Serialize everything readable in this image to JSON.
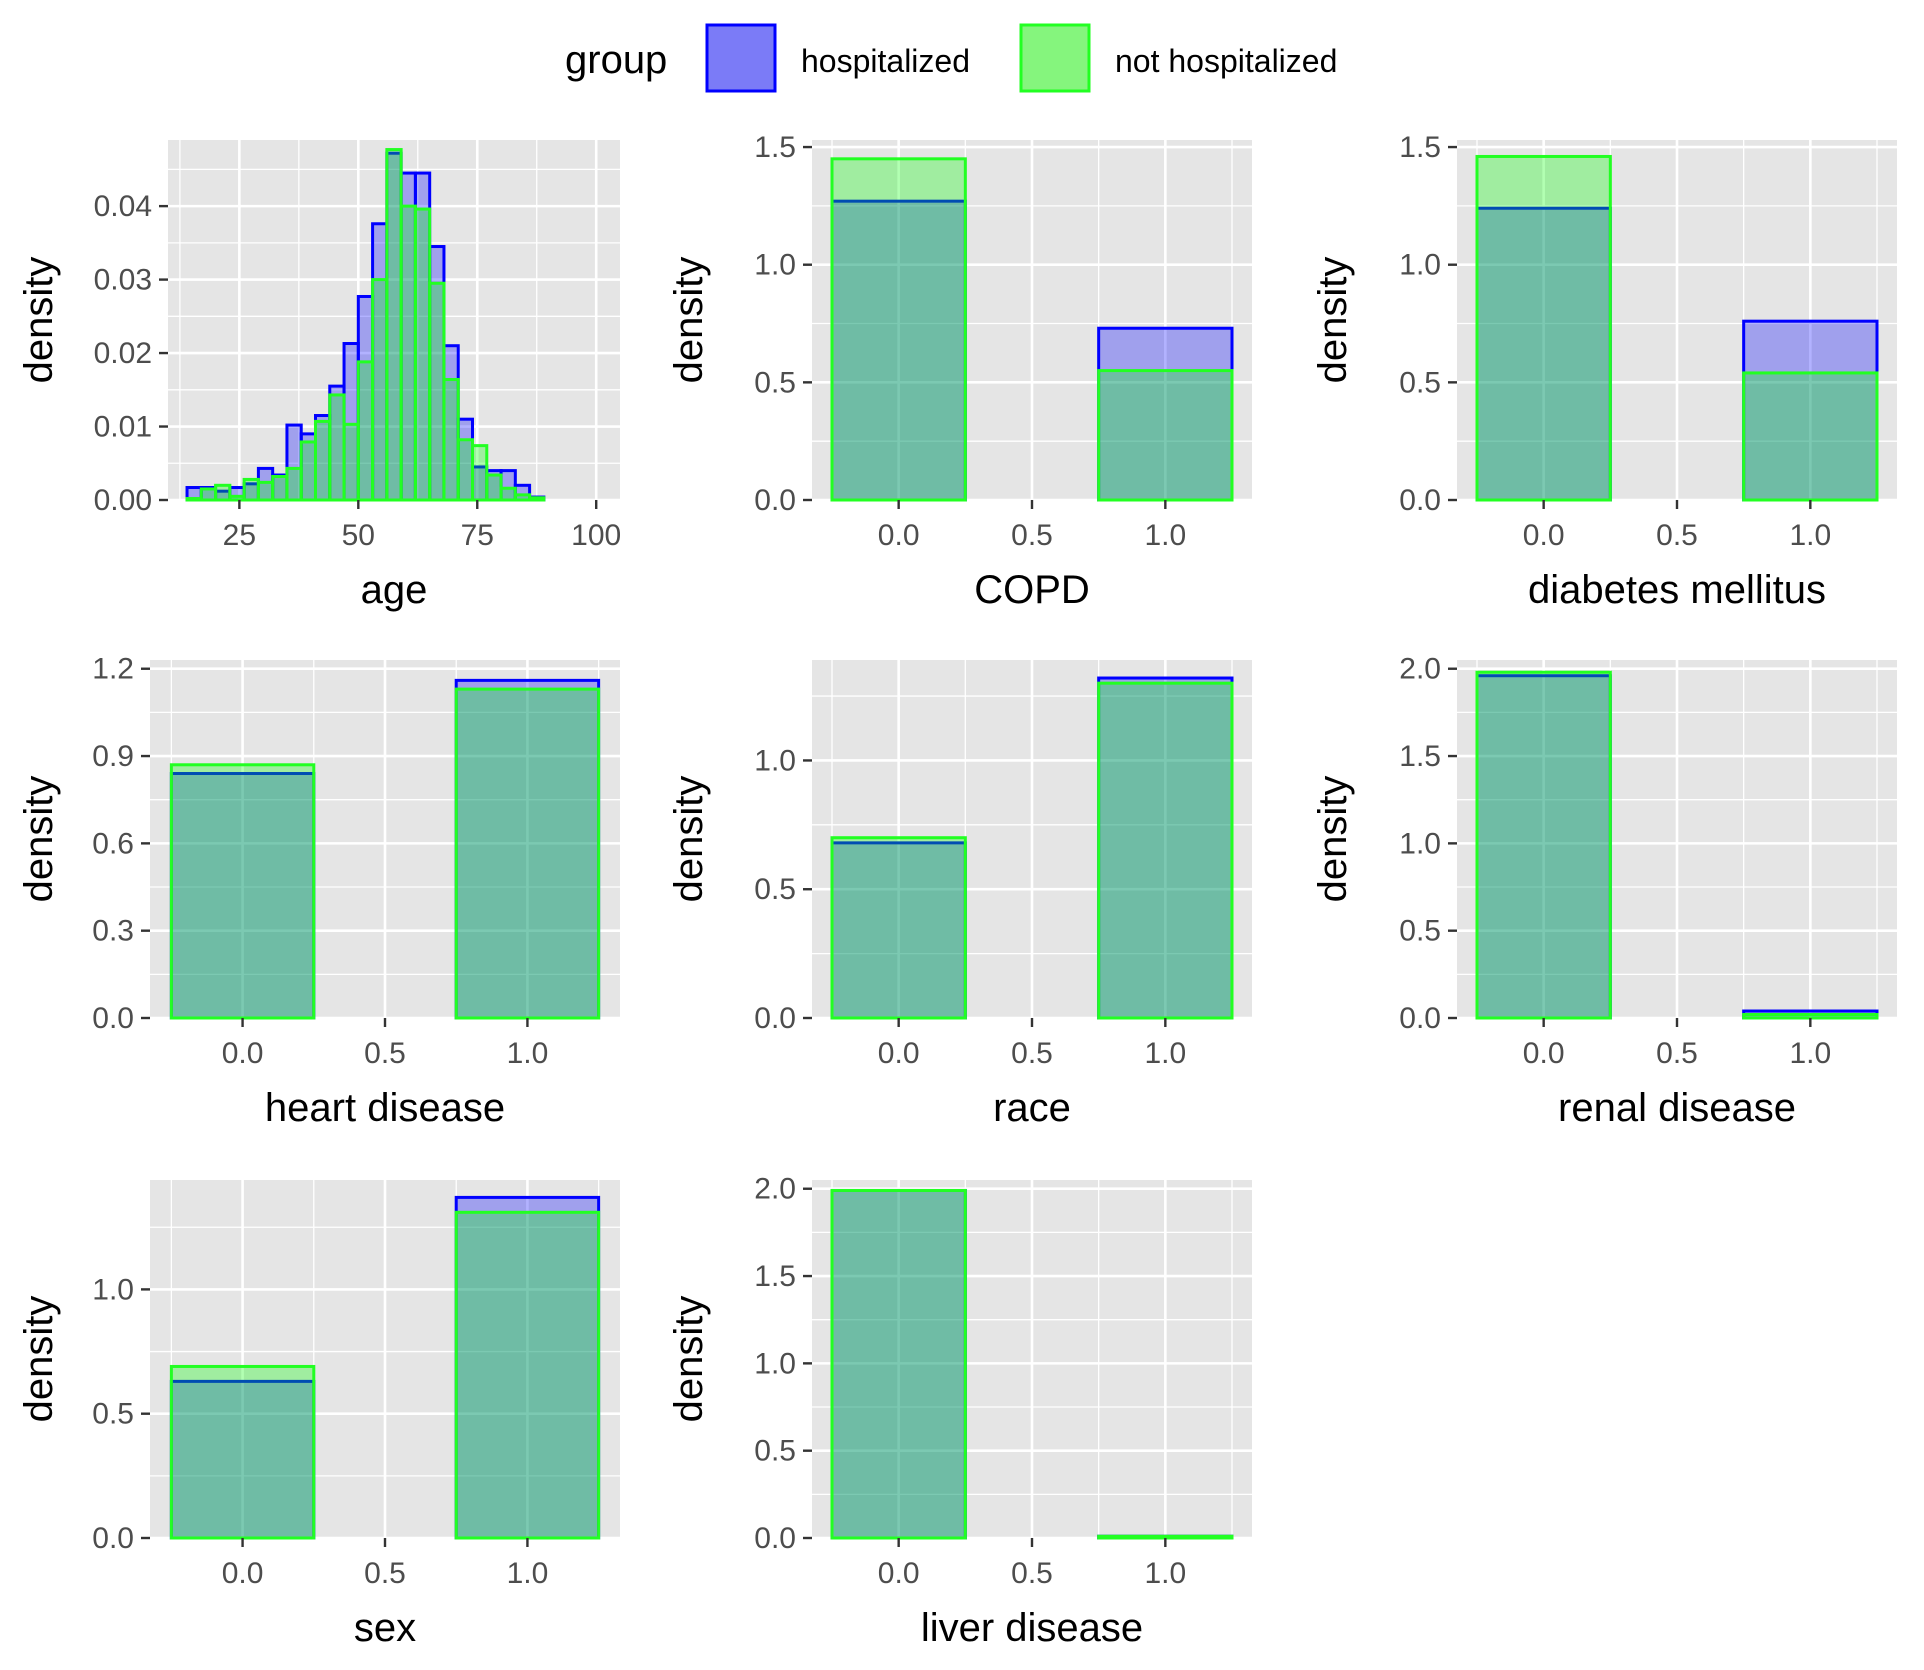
{
  "legend": {
    "title": "group",
    "placement": "top",
    "entries": [
      {
        "label": "hospitalized",
        "color": "#0000ff",
        "fill": "#7b7bf7"
      },
      {
        "label": "not hospitalized",
        "color": "#00ff00",
        "fill": "#85f57d"
      }
    ]
  },
  "colors": {
    "panel_background": "#e5e5e5",
    "grid": "#ffffff",
    "tick_text": "#4d4d4d",
    "hospitalized_line": "#0000ff",
    "not_hospitalized_line": "#22ff22"
  },
  "chart_data": [
    {
      "type": "histogram",
      "xlabel": "age",
      "ylabel": "density",
      "xlim": [
        10,
        105
      ],
      "ylim": [
        0,
        0.049
      ],
      "x_ticks": [
        "25",
        "50",
        "75",
        "100"
      ],
      "y_ticks": [
        "0.00",
        "0.01",
        "0.02",
        "0.03",
        "0.04"
      ],
      "grid": true,
      "bin_start": 14,
      "bin_width": 3,
      "series": [
        {
          "name": "hospitalized",
          "values": [
            0.0017,
            0.0017,
            0.0012,
            0.0017,
            0.0022,
            0.0043,
            0.0034,
            0.0102,
            0.009,
            0.0115,
            0.0155,
            0.0213,
            0.0277,
            0.0376,
            0.0472,
            0.0445,
            0.0445,
            0.0345,
            0.021,
            0.011,
            0.0045,
            0.004,
            0.004,
            0.002,
            0.0004
          ]
        },
        {
          "name": "not hospitalized",
          "values": [
            0.0002,
            0.0015,
            0.002,
            0.0005,
            0.0028,
            0.0024,
            0.0032,
            0.0043,
            0.0079,
            0.0107,
            0.0143,
            0.0103,
            0.0188,
            0.03,
            0.0477,
            0.04,
            0.0396,
            0.0295,
            0.0164,
            0.0082,
            0.0074,
            0.0034,
            0.0016,
            0.0007,
            0.0003
          ]
        }
      ]
    },
    {
      "type": "histogram",
      "xlabel": "COPD",
      "ylabel": "density",
      "xlim": [
        -0.325,
        1.325
      ],
      "ylim": [
        0,
        1.53
      ],
      "x_ticks": [
        "0.0",
        "0.5",
        "1.0"
      ],
      "y_ticks": [
        "0.0",
        "0.5",
        "1.0",
        "1.5"
      ],
      "grid": true,
      "bin_width": 0.5,
      "categories": [
        0,
        0.5,
        1
      ],
      "series": [
        {
          "name": "hospitalized",
          "values": [
            1.27,
            0,
            0.73
          ]
        },
        {
          "name": "not hospitalized",
          "values": [
            1.45,
            0,
            0.55
          ]
        }
      ]
    },
    {
      "type": "histogram",
      "xlabel": "diabetes mellitus",
      "ylabel": "density",
      "xlim": [
        -0.325,
        1.325
      ],
      "ylim": [
        0,
        1.53
      ],
      "x_ticks": [
        "0.0",
        "0.5",
        "1.0"
      ],
      "y_ticks": [
        "0.0",
        "0.5",
        "1.0",
        "1.5"
      ],
      "grid": true,
      "bin_width": 0.5,
      "categories": [
        0,
        0.5,
        1
      ],
      "series": [
        {
          "name": "hospitalized",
          "values": [
            1.24,
            0,
            0.76
          ]
        },
        {
          "name": "not hospitalized",
          "values": [
            1.46,
            0,
            0.54
          ]
        }
      ]
    },
    {
      "type": "histogram",
      "xlabel": "heart disease",
      "ylabel": "density",
      "xlim": [
        -0.325,
        1.325
      ],
      "ylim": [
        0,
        1.23
      ],
      "x_ticks": [
        "0.0",
        "0.5",
        "1.0"
      ],
      "y_ticks": [
        "0.0",
        "0.3",
        "0.6",
        "0.9",
        "1.2"
      ],
      "grid": true,
      "bin_width": 0.5,
      "categories": [
        0,
        0.5,
        1
      ],
      "series": [
        {
          "name": "hospitalized",
          "values": [
            0.84,
            0,
            1.16
          ]
        },
        {
          "name": "not hospitalized",
          "values": [
            0.87,
            0,
            1.13
          ]
        }
      ]
    },
    {
      "type": "histogram",
      "xlabel": "race",
      "ylabel": "density",
      "xlim": [
        -0.325,
        1.325
      ],
      "ylim": [
        0,
        1.39
      ],
      "x_ticks": [
        "0.0",
        "0.5",
        "1.0"
      ],
      "y_ticks": [
        "0.0",
        "0.5",
        "1.0"
      ],
      "grid": true,
      "bin_width": 0.5,
      "categories": [
        0,
        0.5,
        1
      ],
      "series": [
        {
          "name": "hospitalized",
          "values": [
            0.68,
            0,
            1.32
          ]
        },
        {
          "name": "not hospitalized",
          "values": [
            0.7,
            0,
            1.3
          ]
        }
      ]
    },
    {
      "type": "histogram",
      "xlabel": "renal disease",
      "ylabel": "density",
      "xlim": [
        -0.325,
        1.325
      ],
      "ylim": [
        0,
        2.05
      ],
      "x_ticks": [
        "0.0",
        "0.5",
        "1.0"
      ],
      "y_ticks": [
        "0.0",
        "0.5",
        "1.0",
        "1.5",
        "2.0"
      ],
      "grid": true,
      "bin_width": 0.5,
      "categories": [
        0,
        0.5,
        1
      ],
      "series": [
        {
          "name": "hospitalized",
          "values": [
            1.96,
            0,
            0.04
          ]
        },
        {
          "name": "not hospitalized",
          "values": [
            1.98,
            0,
            0.02
          ]
        }
      ]
    },
    {
      "type": "histogram",
      "xlabel": "sex",
      "ylabel": "density",
      "xlim": [
        -0.325,
        1.325
      ],
      "ylim": [
        0,
        1.44
      ],
      "x_ticks": [
        "0.0",
        "0.5",
        "1.0"
      ],
      "y_ticks": [
        "0.0",
        "0.5",
        "1.0"
      ],
      "grid": true,
      "bin_width": 0.5,
      "categories": [
        0,
        0.5,
        1
      ],
      "series": [
        {
          "name": "hospitalized",
          "values": [
            0.63,
            0,
            1.37
          ]
        },
        {
          "name": "not hospitalized",
          "values": [
            0.69,
            0,
            1.31
          ]
        }
      ]
    },
    {
      "type": "histogram",
      "xlabel": "liver disease",
      "ylabel": "density",
      "xlim": [
        -0.325,
        1.325
      ],
      "ylim": [
        0,
        2.05
      ],
      "x_ticks": [
        "0.0",
        "0.5",
        "1.0"
      ],
      "y_ticks": [
        "0.0",
        "0.5",
        "1.0",
        "1.5",
        "2.0"
      ],
      "grid": true,
      "bin_width": 0.5,
      "categories": [
        0,
        0.5,
        1
      ],
      "series": [
        {
          "name": "hospitalized",
          "values": [
            1.99,
            0,
            0.01
          ]
        },
        {
          "name": "not hospitalized",
          "values": [
            1.99,
            0,
            0.01
          ]
        }
      ]
    }
  ]
}
